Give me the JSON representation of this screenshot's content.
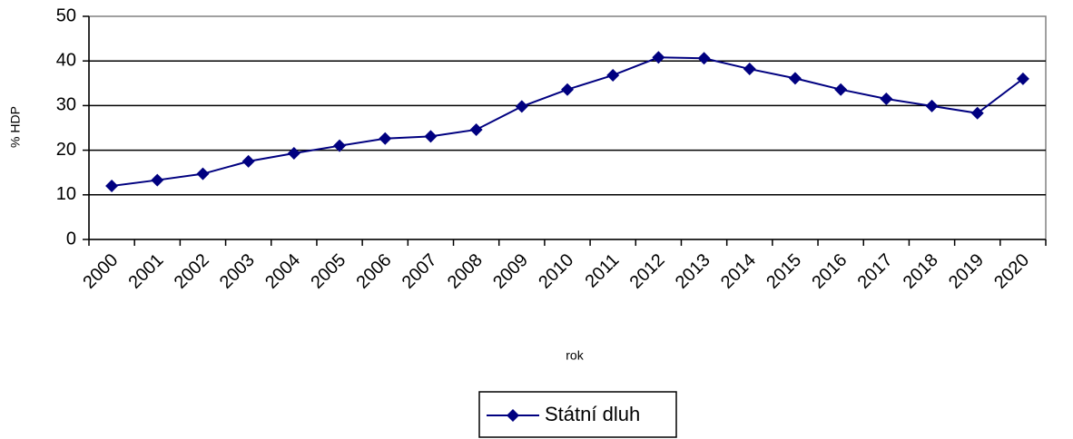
{
  "chart_data": {
    "type": "line",
    "categories": [
      "2000",
      "2001",
      "2002",
      "2003",
      "2004",
      "2005",
      "2006",
      "2007",
      "2008",
      "2009",
      "2010",
      "2011",
      "2012",
      "2013",
      "2014",
      "2015",
      "2016",
      "2017",
      "2018",
      "2019",
      "2020"
    ],
    "series": [
      {
        "name": "Státní dluh",
        "color": "#000080",
        "values": [
          12.0,
          13.3,
          14.7,
          17.5,
          19.3,
          21.0,
          22.6,
          23.1,
          24.6,
          29.8,
          33.6,
          36.8,
          40.8,
          40.6,
          38.2,
          36.1,
          33.6,
          31.5,
          29.9,
          28.3,
          36.0
        ]
      }
    ],
    "ylabel": "% HDP",
    "xlabel": "rok",
    "ylim": [
      0,
      50
    ],
    "yticks": [
      0,
      10,
      20,
      30,
      40,
      50
    ],
    "grid": true,
    "legend": "bottom"
  }
}
